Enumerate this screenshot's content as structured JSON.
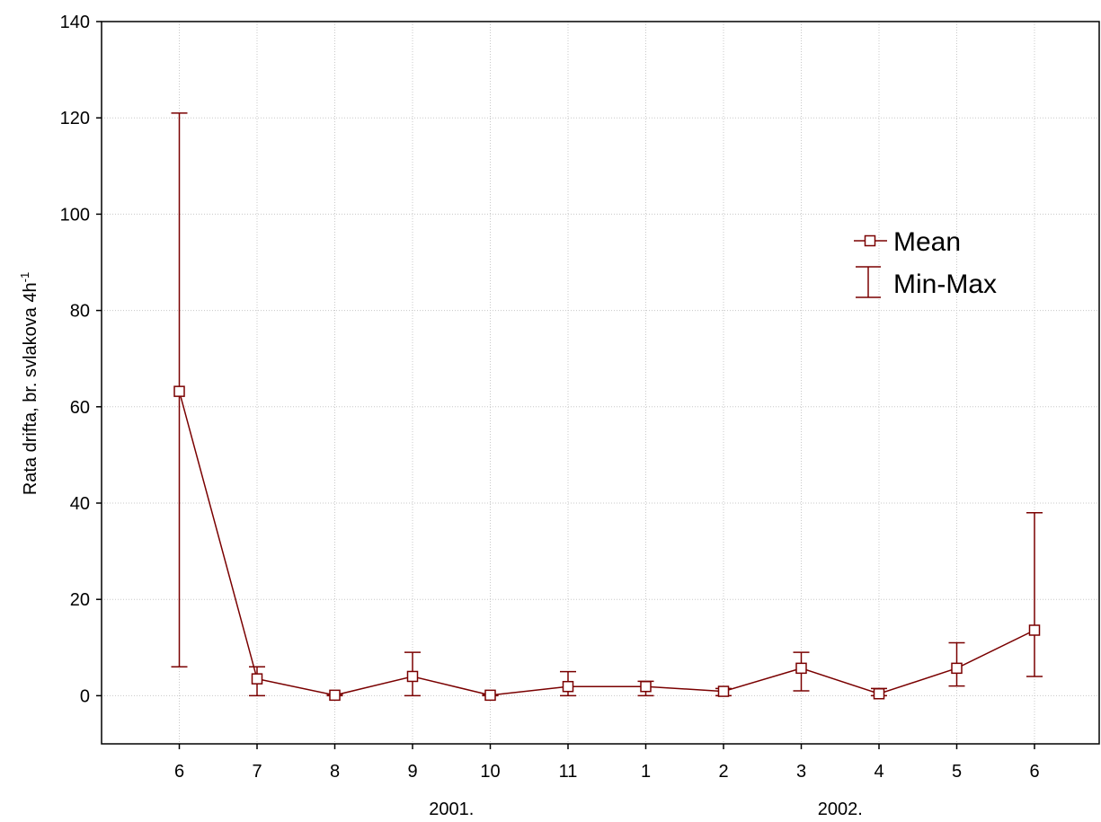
{
  "chart_data": {
    "type": "line",
    "categories": [
      "6",
      "7",
      "8",
      "9",
      "10",
      "11",
      "1",
      "2",
      "3",
      "4",
      "5",
      "6"
    ],
    "series": [
      {
        "name": "Mean",
        "values": [
          63.2,
          3.5,
          0.1,
          4.0,
          0.1,
          1.9,
          1.9,
          0.9,
          5.7,
          0.4,
          5.7,
          13.6
        ]
      },
      {
        "name": "Min-Max",
        "min": [
          6,
          0,
          0,
          0,
          0,
          0,
          0,
          0,
          1,
          0,
          2,
          4
        ],
        "max": [
          121,
          6,
          0.3,
          9,
          0.2,
          5,
          3,
          1.5,
          9,
          1.5,
          11,
          38
        ]
      }
    ],
    "ylabel_main": "Rata drifta, br. svlakova 4h",
    "ylabel_sup": "-1",
    "year_labels": [
      "2001.",
      "2002."
    ],
    "year_label_positions": [
      3.5,
      8.5
    ],
    "ylim": [
      -10,
      140
    ],
    "yticks": [
      0,
      20,
      40,
      60,
      80,
      100,
      120,
      140
    ],
    "grid": true,
    "legend_position": "top-right",
    "colors": {
      "series": "#7a0000",
      "grid": "#c8c8c8",
      "axis": "#000000"
    }
  }
}
